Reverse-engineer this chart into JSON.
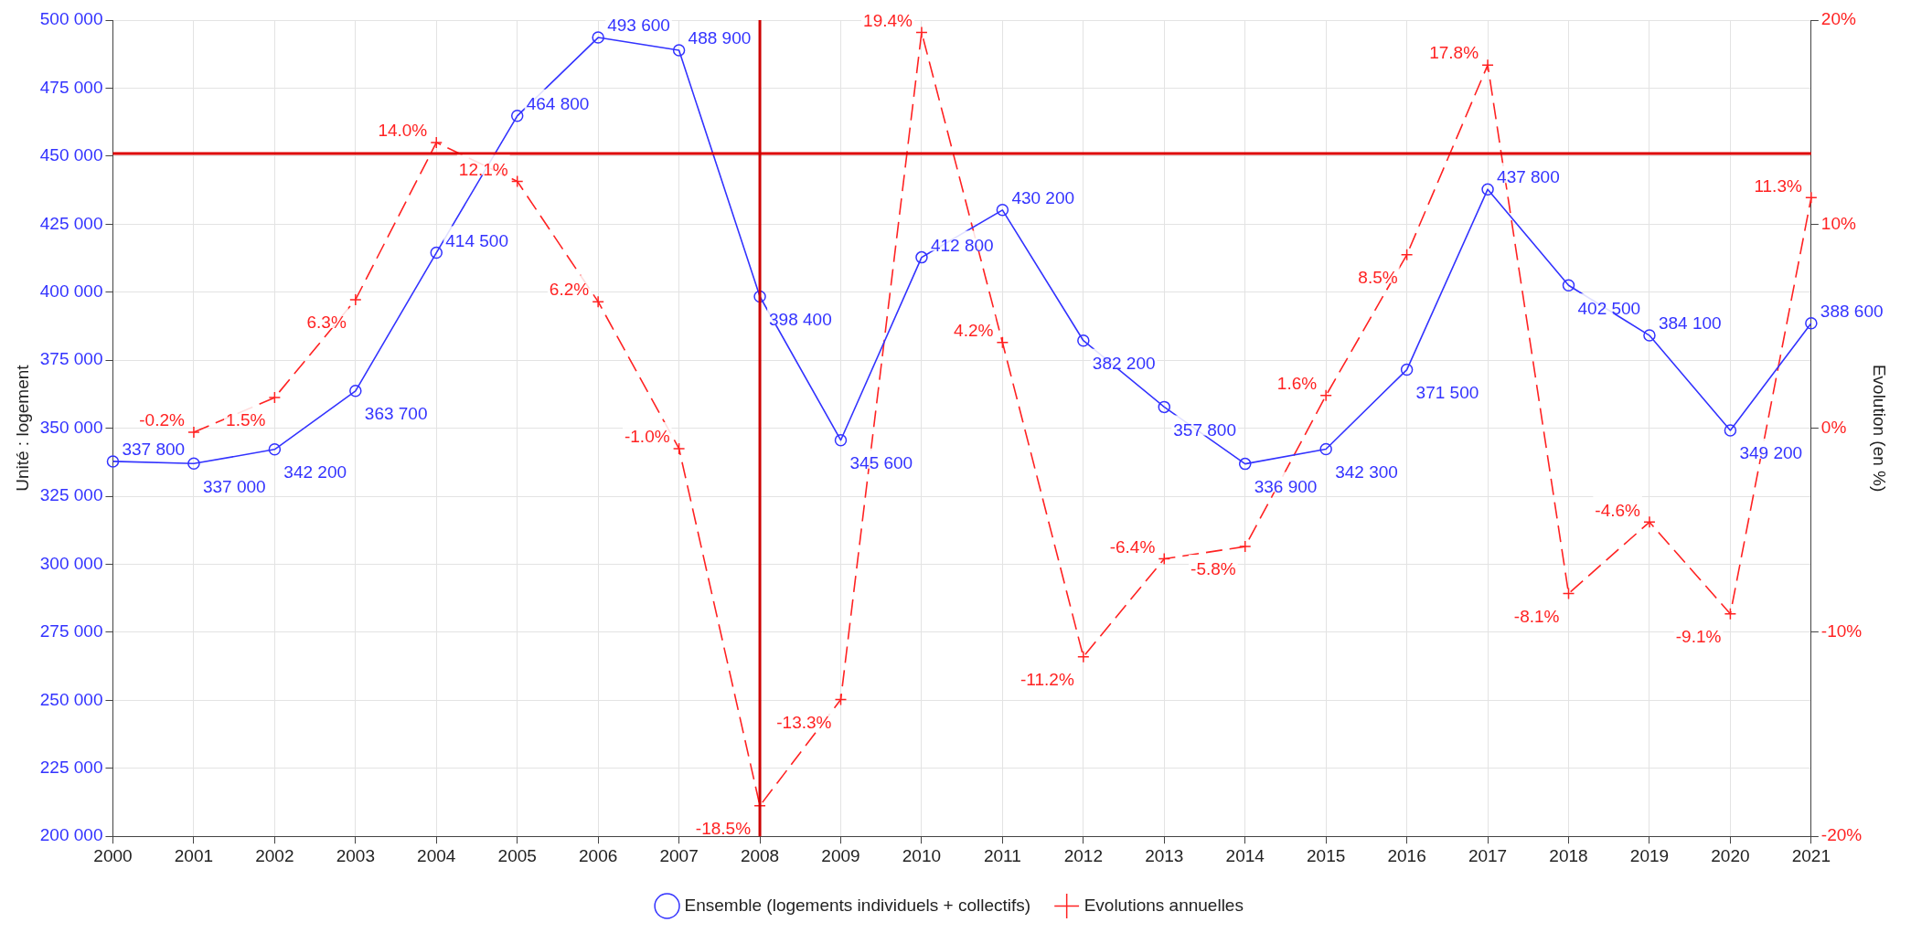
{
  "chart_data": {
    "type": "line",
    "ylabel": "Unité : logement",
    "y2label": "Evolution (en %)",
    "categories": [
      "2000",
      "2001",
      "2002",
      "2003",
      "2004",
      "2005",
      "2006",
      "2007",
      "2008",
      "2009",
      "2010",
      "2011",
      "2012",
      "2013",
      "2014",
      "2015",
      "2016",
      "2017",
      "2018",
      "2019",
      "2020",
      "2021"
    ],
    "series": [
      {
        "name": "Ensemble (logements individuels + collectifs)",
        "color": "#3333ff",
        "marker": "circle",
        "line_style": "solid",
        "values": [
          337800,
          337000,
          342200,
          363700,
          414500,
          464800,
          493600,
          488900,
          398400,
          345600,
          412800,
          430200,
          382200,
          357800,
          336900,
          342300,
          371500,
          437800,
          402500,
          384100,
          349200,
          388600
        ],
        "value_labels": [
          "337 800",
          "337 000",
          "342 200",
          "363 700",
          "414 500",
          "464 800",
          "493 600",
          "488 900",
          "398 400",
          "345 600",
          "412 800",
          "430 200",
          "382 200",
          "357 800",
          "336 900",
          "342 300",
          "371 500",
          "437 800",
          "402 500",
          "384 100",
          "349 200",
          "388 600"
        ]
      },
      {
        "name": "Evolutions annuelles",
        "color": "#ff2222",
        "marker": "cross",
        "line_style": "dashed",
        "axis": "y2",
        "values": [
          null,
          -0.2,
          1.5,
          6.3,
          14.0,
          12.1,
          6.2,
          -1.0,
          -18.5,
          -13.3,
          19.4,
          4.2,
          -11.2,
          -6.4,
          -5.8,
          1.6,
          8.5,
          17.8,
          -8.1,
          -4.6,
          -9.1,
          11.3
        ],
        "value_labels": [
          null,
          "-0.2%",
          "1.5%",
          "6.3%",
          "14.0%",
          "12.1%",
          "6.2%",
          "-1.0%",
          "-18.5%",
          "-13.3%",
          "19.4%",
          "4.2%",
          "-11.2%",
          "-6.4%",
          "-5.8%",
          "1.6%",
          "8.5%",
          "17.8%",
          "-8.1%",
          "-4.6%",
          "-9.1%",
          "11.3%"
        ]
      }
    ],
    "ylim": [
      200000,
      500000
    ],
    "yticks": [
      {
        "value": 200000,
        "label": "200 000"
      },
      {
        "value": 225000,
        "label": "225 000"
      },
      {
        "value": 250000,
        "label": "250 000"
      },
      {
        "value": 275000,
        "label": "275 000"
      },
      {
        "value": 300000,
        "label": "300 000"
      },
      {
        "value": 325000,
        "label": "325 000"
      },
      {
        "value": 350000,
        "label": "350 000"
      },
      {
        "value": 375000,
        "label": "375 000"
      },
      {
        "value": 400000,
        "label": "400 000"
      },
      {
        "value": 425000,
        "label": "425 000"
      },
      {
        "value": 450000,
        "label": "450 000"
      },
      {
        "value": 475000,
        "label": "475 000"
      },
      {
        "value": 500000,
        "label": "500 000"
      }
    ],
    "y2lim": [
      -20,
      20
    ],
    "y2ticks": [
      {
        "value": -20,
        "label": "-20%"
      },
      {
        "value": -10,
        "label": "-10%"
      },
      {
        "value": 0,
        "label": "0%"
      },
      {
        "value": 10,
        "label": "10%"
      },
      {
        "value": 20,
        "label": "20%"
      }
    ],
    "ref_lines": [
      {
        "axis": "y",
        "value": 451000,
        "color": "#dd0000"
      },
      {
        "axis": "x",
        "value": "2008",
        "color": "#cc0000"
      }
    ],
    "grid": true,
    "legend": "bottom"
  }
}
